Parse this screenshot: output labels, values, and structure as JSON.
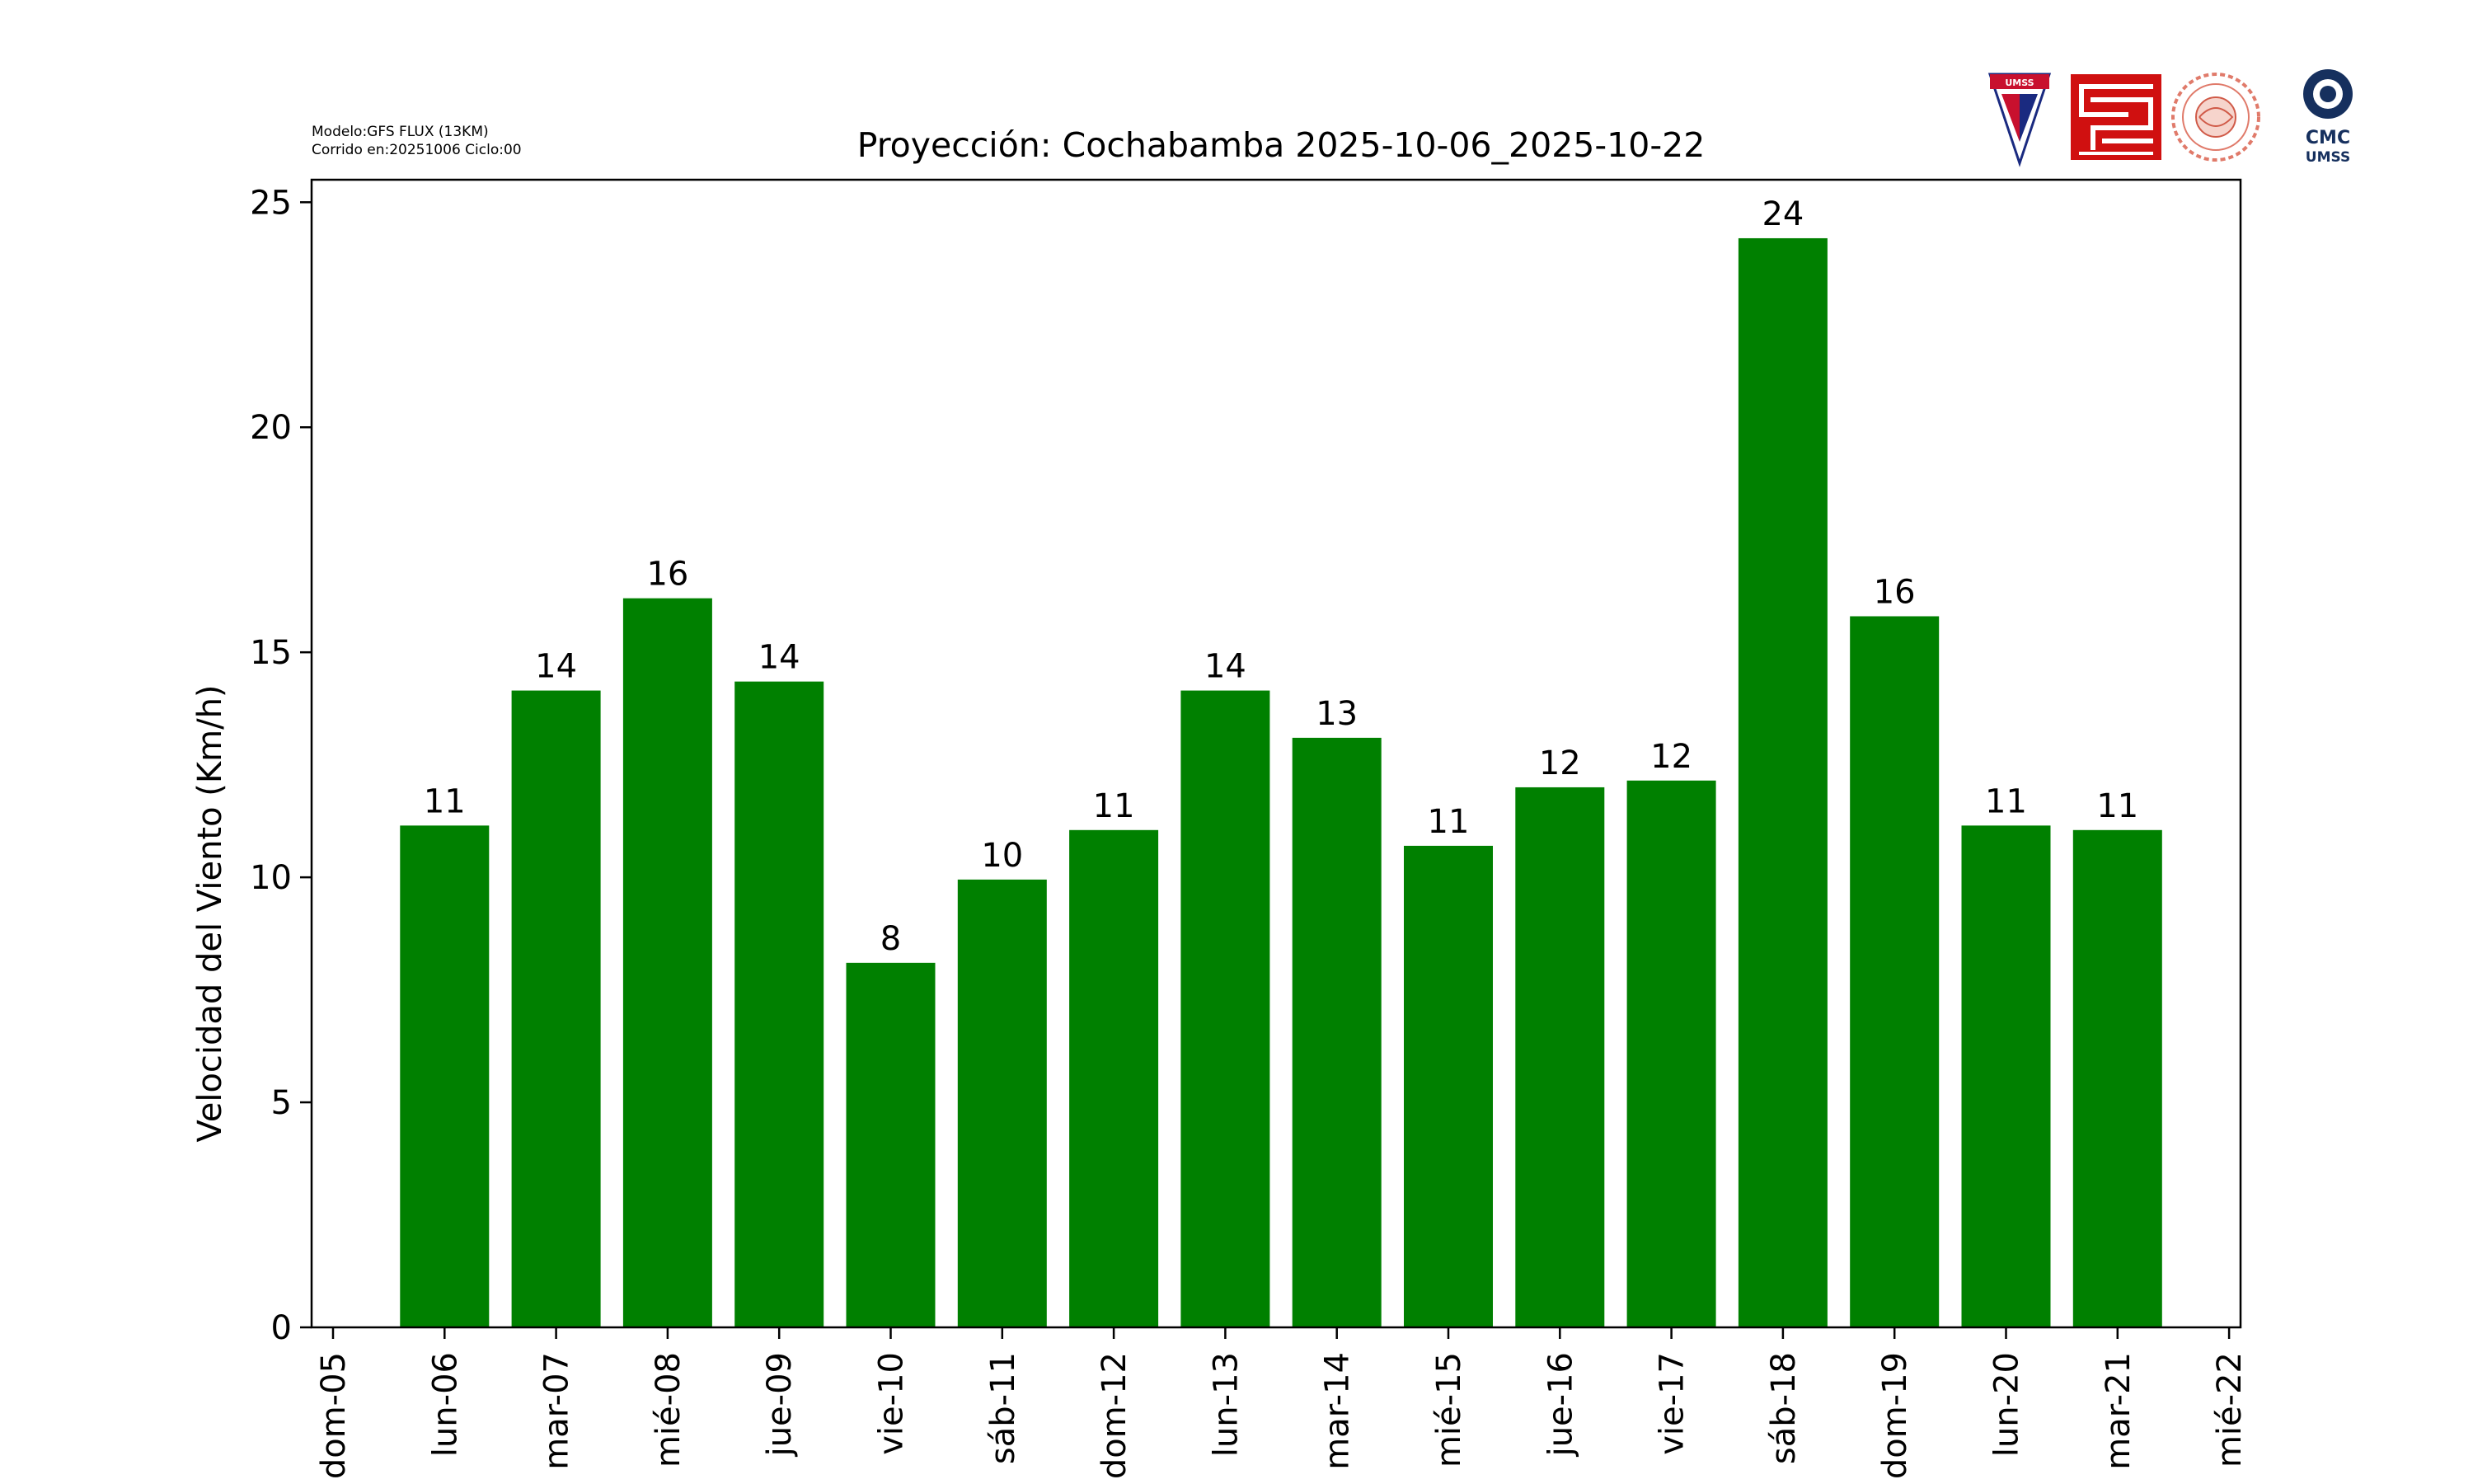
{
  "meta": {
    "model_line": "Modelo:GFS FLUX (13KM)",
    "run_line": "Corrido en:20251006 Ciclo:00"
  },
  "logos": {
    "umss_label": "UMSS",
    "cmc_label": "CMC",
    "cmc_sub": "UMSS"
  },
  "colors": {
    "bar": "#008000",
    "axis": "#000000"
  },
  "chart_data": {
    "type": "bar",
    "title": "Proyección: Cochabamba  2025-10-06_2025-10-22",
    "xlabel": "",
    "ylabel": "Velocidad del Viento (Km/h)",
    "ylim": [
      0,
      25.5
    ],
    "yticks": [
      0,
      5,
      10,
      15,
      20,
      25
    ],
    "xticks": [
      "dom-05",
      "lun-06",
      "mar-07",
      "mié-08",
      "jue-09",
      "vie-10",
      "sáb-11",
      "dom-12",
      "lun-13",
      "mar-14",
      "mié-15",
      "jue-16",
      "vie-17",
      "sáb-18",
      "dom-19",
      "lun-20",
      "mar-21",
      "mié-22"
    ],
    "categories": [
      "lun-06",
      "mar-07",
      "mié-08",
      "jue-09",
      "vie-10",
      "sáb-11",
      "dom-12",
      "lun-13",
      "mar-14",
      "mié-15",
      "jue-16",
      "vie-17",
      "sáb-18",
      "dom-19",
      "lun-20",
      "mar-21"
    ],
    "values": [
      11.15,
      14.15,
      16.2,
      14.35,
      8.1,
      9.95,
      11.05,
      14.15,
      13.1,
      10.7,
      12.0,
      12.15,
      24.2,
      15.8,
      11.15,
      11.05
    ],
    "labels": [
      "11",
      "14",
      "16",
      "14",
      "8",
      "10",
      "11",
      "14",
      "13",
      "11",
      "12",
      "12",
      "24",
      "16",
      "11",
      "11"
    ],
    "grid": false,
    "legend": "none"
  }
}
